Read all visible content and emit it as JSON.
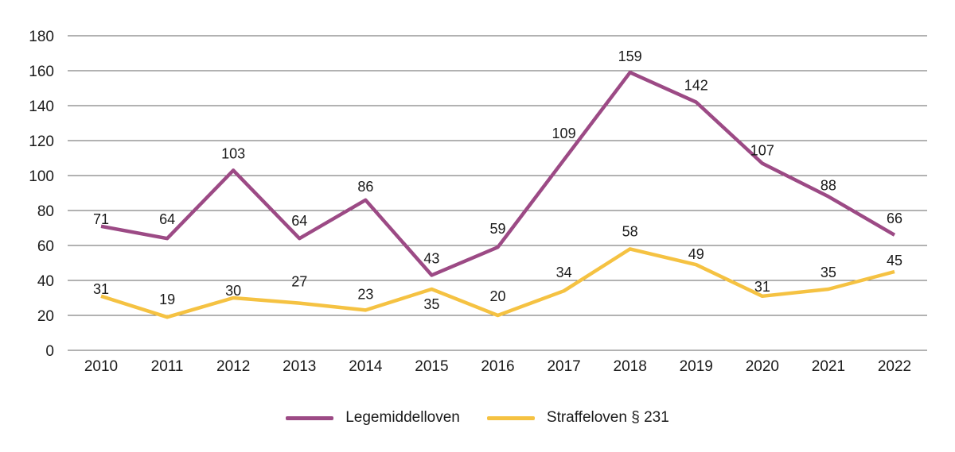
{
  "chart_data": {
    "type": "line",
    "title": "",
    "xlabel": "",
    "ylabel": "",
    "categories": [
      "2010",
      "2011",
      "2012",
      "2013",
      "2014",
      "2015",
      "2016",
      "2017",
      "2018",
      "2019",
      "2020",
      "2021",
      "2022"
    ],
    "series": [
      {
        "name": "Legemiddelloven",
        "color": "#9C4A85",
        "values": [
          71,
          64,
          103,
          64,
          86,
          43,
          59,
          109,
          159,
          142,
          107,
          88,
          66
        ],
        "label_dy": [
          -3,
          -18,
          -15,
          -16,
          -11,
          -15,
          -17,
          -27,
          -14,
          -15,
          -10,
          -8,
          -15
        ]
      },
      {
        "name": "Straffeloven § 231",
        "color": "#F5C242",
        "values": [
          31,
          19,
          30,
          27,
          23,
          35,
          20,
          34,
          58,
          49,
          31,
          35,
          45
        ],
        "label_dy": [
          -3,
          -16,
          -3,
          -21,
          -14,
          25,
          -18,
          -17,
          -16,
          -7,
          -6,
          -15,
          -8
        ]
      }
    ],
    "ylim": [
      0,
      180
    ],
    "yticks": [
      0,
      20,
      40,
      60,
      80,
      100,
      120,
      140,
      160,
      180
    ],
    "grid": true,
    "data_labels": true,
    "legend_position": "bottom"
  },
  "styles": {
    "grid_color": "#666666",
    "text_color": "#1a1a1a",
    "background": "#ffffff",
    "line_width": 4.5
  }
}
